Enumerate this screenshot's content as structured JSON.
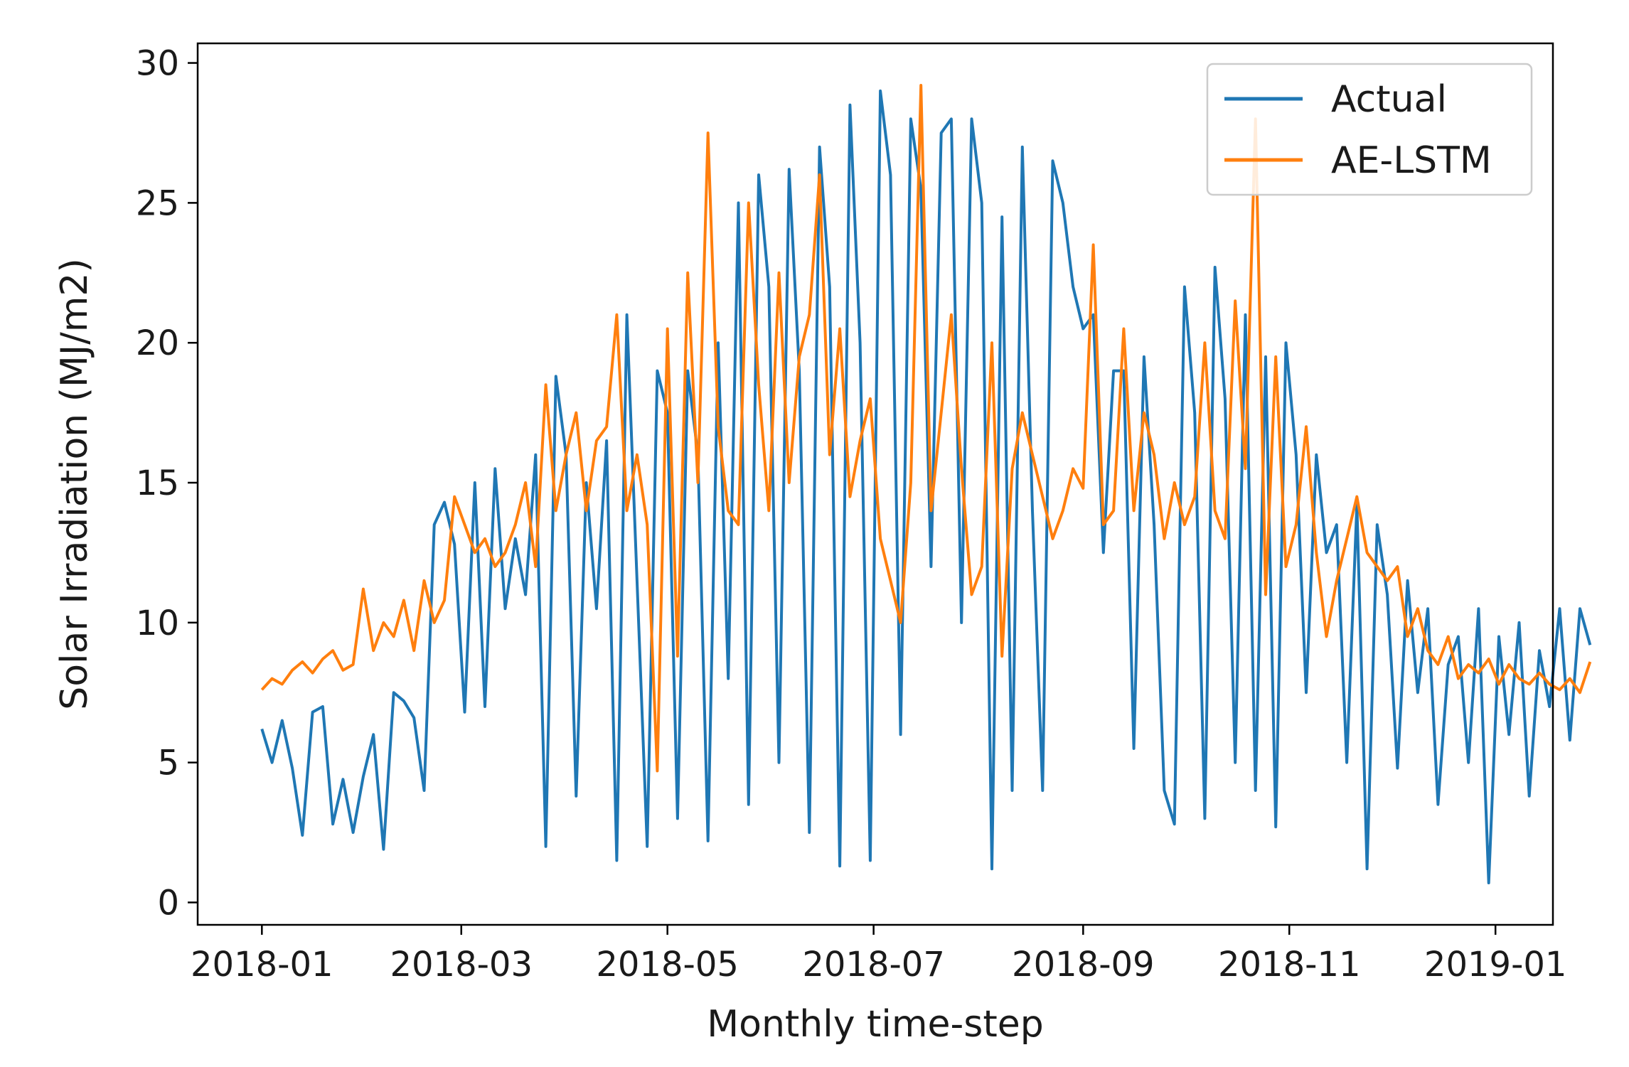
{
  "chart_data": {
    "type": "line",
    "title": "",
    "xlabel": "Monthly time-step",
    "ylabel": "Solar Irradiation (MJ/m2)",
    "xlim": [
      "2017-12-13",
      "2019-01-18"
    ],
    "ylim": [
      -0.8,
      30.7
    ],
    "x_ticks": [
      "2018-01",
      "2018-03",
      "2018-05",
      "2018-07",
      "2018-09",
      "2018-11",
      "2019-01"
    ],
    "y_ticks": [
      0,
      5,
      10,
      15,
      20,
      25,
      30
    ],
    "grid": false,
    "legend_position": "top-right",
    "colors": {
      "Actual": "#1f77b4",
      "AE-LSTM": "#ff7f0e"
    },
    "series": [
      {
        "name": "Actual",
        "x_start": "2018-01-01",
        "x_step_days": 3,
        "values": [
          6.2,
          5.0,
          6.5,
          4.8,
          2.4,
          6.8,
          7.0,
          2.8,
          4.4,
          2.5,
          4.5,
          6.0,
          1.9,
          7.5,
          7.2,
          6.6,
          4.0,
          13.5,
          14.3,
          12.8,
          6.8,
          15.0,
          7.0,
          15.5,
          10.5,
          13.0,
          11.0,
          16.0,
          2.0,
          18.8,
          16.0,
          3.8,
          15.0,
          10.5,
          16.5,
          1.5,
          21.0,
          11.5,
          2.0,
          19.0,
          17.5,
          3.0,
          19.0,
          16.0,
          2.2,
          20.0,
          8.0,
          25.0,
          3.5,
          26.0,
          22.0,
          5.0,
          26.2,
          19.0,
          2.5,
          27.0,
          22.0,
          1.3,
          28.5,
          20.0,
          1.5,
          29.0,
          26.0,
          6.0,
          28.0,
          25.5,
          12.0,
          27.5,
          28.0,
          10.0,
          28.0,
          25.0,
          1.2,
          24.5,
          4.0,
          27.0,
          14.0,
          4.0,
          26.5,
          25.0,
          22.0,
          20.5,
          21.0,
          12.5,
          19.0,
          19.0,
          5.5,
          19.5,
          13.5,
          4.0,
          2.8,
          22.0,
          17.5,
          3.0,
          22.7,
          18.0,
          5.0,
          21.0,
          4.0,
          19.5,
          2.7,
          20.0,
          16.0,
          7.5,
          16.0,
          12.5,
          13.5,
          5.0,
          14.2,
          1.2,
          13.5,
          11.0,
          4.8,
          11.5,
          7.5,
          10.5,
          3.5,
          8.5,
          9.5,
          5.0,
          10.5,
          0.7,
          9.5,
          6.0,
          10.0,
          3.8,
          9.0,
          7.0,
          10.5,
          5.8,
          10.5,
          9.2
        ]
      },
      {
        "name": "AE-LSTM",
        "x_start": "2018-01-01",
        "x_step_days": 3,
        "values": [
          7.6,
          8.0,
          7.8,
          8.3,
          8.6,
          8.2,
          8.7,
          9.0,
          8.3,
          8.5,
          11.2,
          9.0,
          10.0,
          9.5,
          10.8,
          9.0,
          11.5,
          10.0,
          10.8,
          14.5,
          13.5,
          12.5,
          13.0,
          12.0,
          12.5,
          13.5,
          15.0,
          12.0,
          18.5,
          14.0,
          16.0,
          17.5,
          14.0,
          16.5,
          17.0,
          21.0,
          14.0,
          16.0,
          13.5,
          4.7,
          20.5,
          8.8,
          22.5,
          15.0,
          27.5,
          17.0,
          14.0,
          13.5,
          25.0,
          18.5,
          14.0,
          22.5,
          15.0,
          19.5,
          21.0,
          26.0,
          16.0,
          20.5,
          14.5,
          16.5,
          18.0,
          13.0,
          11.5,
          10.0,
          15.0,
          29.2,
          14.0,
          17.5,
          21.0,
          15.5,
          11.0,
          12.0,
          20.0,
          8.8,
          15.5,
          17.5,
          16.0,
          14.5,
          13.0,
          14.0,
          15.5,
          14.8,
          23.5,
          13.5,
          14.0,
          20.5,
          14.0,
          17.5,
          16.0,
          13.0,
          15.0,
          13.5,
          14.5,
          20.0,
          14.0,
          13.0,
          21.5,
          15.5,
          28.0,
          11.0,
          19.5,
          12.0,
          13.5,
          17.0,
          12.5,
          9.5,
          11.5,
          13.0,
          14.5,
          12.5,
          12.0,
          11.5,
          12.0,
          9.5,
          10.5,
          9.0,
          8.5,
          9.5,
          8.0,
          8.5,
          8.2,
          8.7,
          7.8,
          8.5,
          8.0,
          7.8,
          8.2,
          7.8,
          7.6,
          8.0,
          7.5,
          8.6
        ]
      }
    ]
  }
}
